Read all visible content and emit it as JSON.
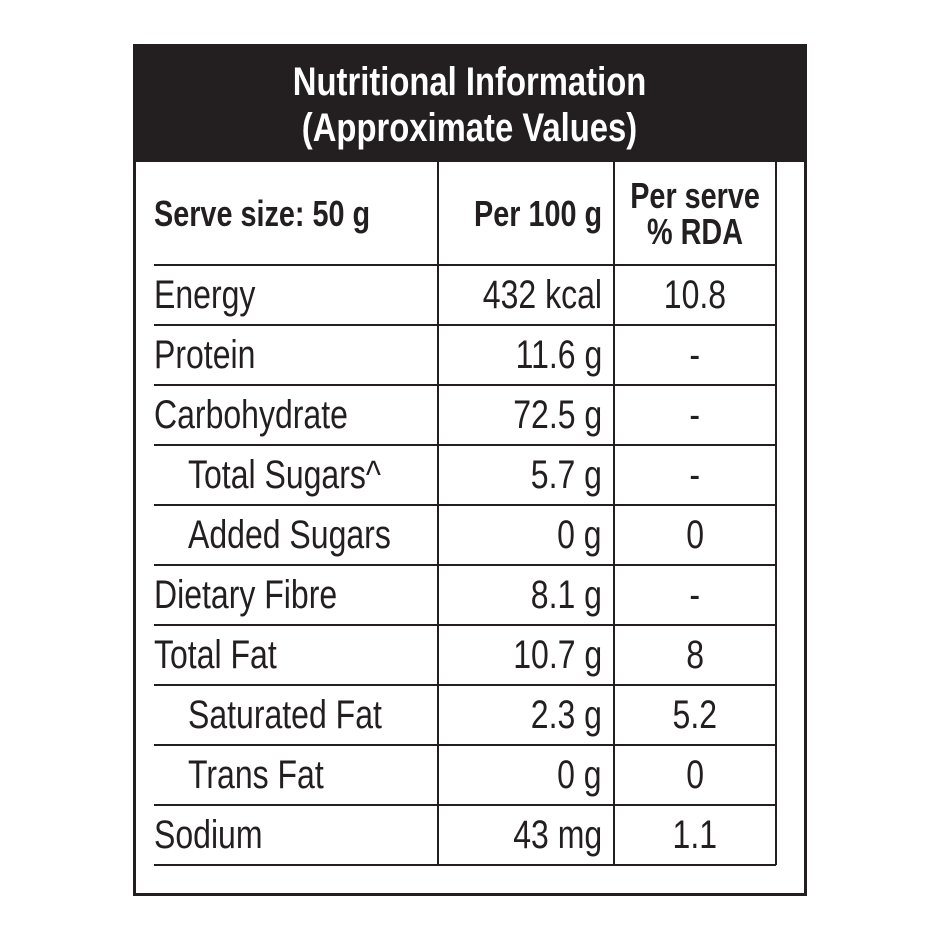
{
  "title": {
    "line1": "Nutritional Information",
    "line2": "(Approximate Values)"
  },
  "header": {
    "serve_size": "Serve size: 50 g",
    "per_100g": "Per 100 g",
    "per_serve_line1": "Per serve",
    "per_serve_line2": "% RDA"
  },
  "rows": [
    {
      "label": "Energy",
      "per100": "432 kcal",
      "rda": "10.8",
      "indent": false
    },
    {
      "label": "Protein",
      "per100": "11.6 g",
      "rda": "-",
      "indent": false
    },
    {
      "label": "Carbohydrate",
      "per100": "72.5 g",
      "rda": "-",
      "indent": false
    },
    {
      "label": "Total Sugars^",
      "per100": "5.7 g",
      "rda": "-",
      "indent": true
    },
    {
      "label": "Added Sugars",
      "per100": "0 g",
      "rda": "0",
      "indent": true
    },
    {
      "label": "Dietary Fibre",
      "per100": "8.1 g",
      "rda": "-",
      "indent": false
    },
    {
      "label": "Total Fat",
      "per100": "10.7 g",
      "rda": "8",
      "indent": false
    },
    {
      "label": "Saturated Fat",
      "per100": "2.3 g",
      "rda": "5.2",
      "indent": true
    },
    {
      "label": "Trans Fat",
      "per100": "0 g",
      "rda": "0",
      "indent": true
    },
    {
      "label": "Sodium",
      "per100": "43 mg",
      "rda": "1.1",
      "indent": false
    }
  ]
}
